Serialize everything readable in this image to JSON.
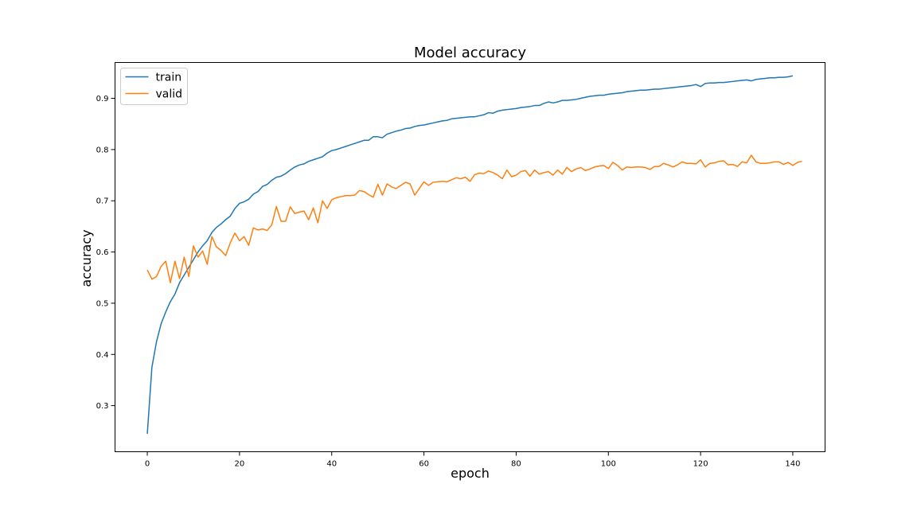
{
  "chart_data": {
    "type": "line",
    "title": "Model accuracy",
    "xlabel": "epoch",
    "ylabel": "accuracy",
    "xlim": [
      -7,
      147
    ],
    "ylim": [
      0.21,
      0.97
    ],
    "xticks": [
      0,
      20,
      40,
      60,
      80,
      100,
      120,
      140
    ],
    "yticks": [
      0.3,
      0.4,
      0.5,
      0.6,
      0.7,
      0.8,
      0.9
    ],
    "xtick_labels": [
      "0",
      "20",
      "40",
      "60",
      "80",
      "100",
      "120",
      "140"
    ],
    "ytick_labels": [
      "0.3",
      "0.4",
      "0.5",
      "0.6",
      "0.7",
      "0.8",
      "0.9"
    ],
    "grid": false,
    "legend_position": "top-left",
    "series": [
      {
        "name": "train",
        "color": "#1f77b4",
        "values": [
          0.245,
          0.375,
          0.425,
          0.46,
          0.483,
          0.503,
          0.518,
          0.54,
          0.555,
          0.57,
          0.585,
          0.6,
          0.612,
          0.622,
          0.638,
          0.648,
          0.655,
          0.663,
          0.67,
          0.685,
          0.695,
          0.698,
          0.703,
          0.713,
          0.718,
          0.728,
          0.732,
          0.74,
          0.746,
          0.748,
          0.753,
          0.76,
          0.766,
          0.77,
          0.772,
          0.777,
          0.78,
          0.783,
          0.786,
          0.793,
          0.798,
          0.8,
          0.803,
          0.806,
          0.809,
          0.812,
          0.815,
          0.818,
          0.818,
          0.825,
          0.825,
          0.823,
          0.83,
          0.833,
          0.836,
          0.838,
          0.841,
          0.842,
          0.845,
          0.847,
          0.848,
          0.85,
          0.852,
          0.854,
          0.856,
          0.857,
          0.86,
          0.861,
          0.862,
          0.863,
          0.864,
          0.864,
          0.866,
          0.868,
          0.872,
          0.871,
          0.875,
          0.877,
          0.878,
          0.879,
          0.88,
          0.882,
          0.883,
          0.884,
          0.886,
          0.886,
          0.89,
          0.893,
          0.891,
          0.893,
          0.896,
          0.896,
          0.897,
          0.898,
          0.9,
          0.902,
          0.904,
          0.905,
          0.906,
          0.906,
          0.908,
          0.909,
          0.91,
          0.911,
          0.913,
          0.914,
          0.915,
          0.916,
          0.916,
          0.917,
          0.918,
          0.918,
          0.919,
          0.92,
          0.921,
          0.922,
          0.923,
          0.924,
          0.925,
          0.927,
          0.923,
          0.929,
          0.93,
          0.93,
          0.931,
          0.931,
          0.932,
          0.933,
          0.934,
          0.935,
          0.936,
          0.934,
          0.937,
          0.938,
          0.939,
          0.94,
          0.94,
          0.941,
          0.941,
          0.942,
          0.944
        ]
      },
      {
        "name": "valid",
        "color": "#ff7f0e",
        "values": [
          0.565,
          0.547,
          0.552,
          0.572,
          0.582,
          0.54,
          0.582,
          0.548,
          0.59,
          0.552,
          0.612,
          0.59,
          0.602,
          0.576,
          0.63,
          0.61,
          0.603,
          0.593,
          0.618,
          0.637,
          0.622,
          0.63,
          0.613,
          0.647,
          0.643,
          0.645,
          0.642,
          0.653,
          0.689,
          0.66,
          0.66,
          0.688,
          0.675,
          0.678,
          0.68,
          0.663,
          0.686,
          0.657,
          0.7,
          0.685,
          0.702,
          0.706,
          0.708,
          0.71,
          0.71,
          0.711,
          0.72,
          0.718,
          0.712,
          0.707,
          0.732,
          0.711,
          0.733,
          0.727,
          0.724,
          0.73,
          0.736,
          0.733,
          0.711,
          0.724,
          0.737,
          0.73,
          0.736,
          0.737,
          0.738,
          0.737,
          0.741,
          0.745,
          0.743,
          0.746,
          0.738,
          0.751,
          0.754,
          0.753,
          0.758,
          0.755,
          0.75,
          0.743,
          0.76,
          0.747,
          0.75,
          0.757,
          0.759,
          0.748,
          0.76,
          0.752,
          0.755,
          0.757,
          0.75,
          0.76,
          0.752,
          0.765,
          0.757,
          0.762,
          0.765,
          0.759,
          0.762,
          0.766,
          0.768,
          0.769,
          0.763,
          0.775,
          0.769,
          0.76,
          0.766,
          0.765,
          0.766,
          0.766,
          0.765,
          0.761,
          0.767,
          0.767,
          0.773,
          0.77,
          0.766,
          0.77,
          0.776,
          0.773,
          0.773,
          0.772,
          0.78,
          0.766,
          0.773,
          0.774,
          0.777,
          0.778,
          0.77,
          0.771,
          0.767,
          0.776,
          0.774,
          0.789,
          0.776,
          0.773,
          0.773,
          0.774,
          0.776,
          0.776,
          0.771,
          0.775,
          0.769,
          0.775,
          0.777
        ]
      }
    ]
  }
}
